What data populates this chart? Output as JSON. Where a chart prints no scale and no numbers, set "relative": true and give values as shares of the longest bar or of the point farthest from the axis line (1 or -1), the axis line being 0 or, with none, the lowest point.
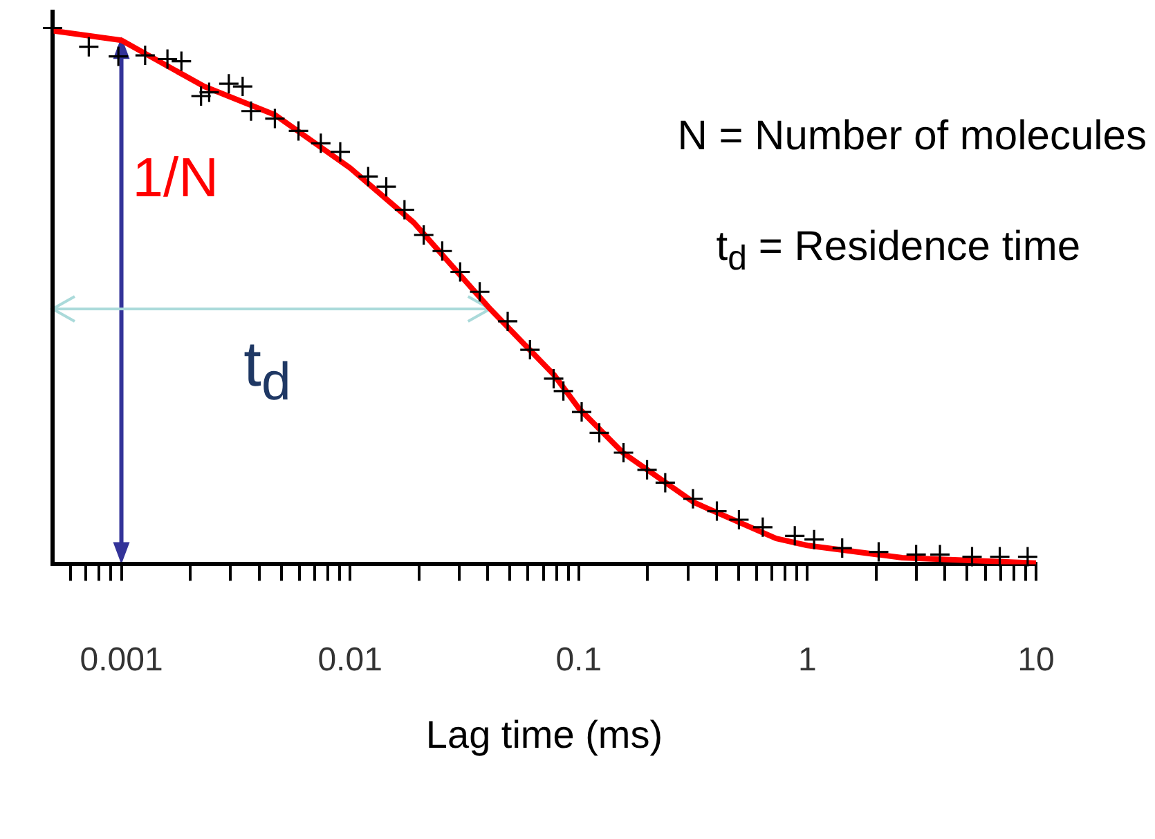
{
  "chart_data": {
    "type": "scatter",
    "xlabel": "Lag time (ms)",
    "relative": true,
    "log": "x",
    "grid": false,
    "legend": false,
    "xlim": [
      0.0005,
      10
    ],
    "xticks": [
      {
        "value": 0.0006,
        "label": null
      },
      {
        "value": 0.0007,
        "label": null
      },
      {
        "value": 0.0008,
        "label": null
      },
      {
        "value": 0.0009,
        "label": null
      },
      0.001,
      {
        "value": 0.002,
        "label": null
      },
      {
        "value": 0.003,
        "label": null
      },
      {
        "value": 0.004,
        "label": null
      },
      {
        "value": 0.005,
        "label": null
      },
      {
        "value": 0.006,
        "label": null
      },
      {
        "value": 0.007,
        "label": null
      },
      {
        "value": 0.008,
        "label": null
      },
      {
        "value": 0.009,
        "label": null
      },
      0.01,
      {
        "value": 0.02,
        "label": null
      },
      {
        "value": 0.03,
        "label": null
      },
      {
        "value": 0.04,
        "label": null
      },
      {
        "value": 0.05,
        "label": null
      },
      {
        "value": 0.06,
        "label": null
      },
      {
        "value": 0.07,
        "label": null
      },
      {
        "value": 0.08,
        "label": null
      },
      {
        "value": 0.09,
        "label": null
      },
      0.1,
      {
        "value": 0.2,
        "label": null
      },
      {
        "value": 0.3,
        "label": null
      },
      {
        "value": 0.4,
        "label": null
      },
      {
        "value": 0.5,
        "label": null
      },
      {
        "value": 0.6,
        "label": null
      },
      {
        "value": 0.7,
        "label": null
      },
      {
        "value": 0.8,
        "label": null
      },
      {
        "value": 0.9,
        "label": null
      },
      1,
      {
        "value": 2,
        "label": null
      },
      {
        "value": 3,
        "label": null
      },
      {
        "value": 4,
        "label": null
      },
      {
        "value": 5,
        "label": null
      },
      {
        "value": 6,
        "label": null
      },
      {
        "value": 7,
        "label": null
      },
      {
        "value": 8,
        "label": null
      },
      {
        "value": 9,
        "label": null
      },
      10
    ],
    "series": [
      {
        "type": "scatter",
        "color": "#000000",
        "marker": "cross",
        "x": [
          0.0005,
          0.00072,
          0.00097,
          0.00127,
          0.00159,
          0.00183,
          0.00223,
          0.00242,
          0.00295,
          0.00339,
          0.00369,
          0.00469,
          0.00595,
          0.00745,
          0.00906,
          0.012,
          0.0144,
          0.0173,
          0.021,
          0.0253,
          0.0303,
          0.0369,
          0.0489,
          0.0612,
          0.0777,
          0.0857,
          0.103,
          0.123,
          0.157,
          0.199,
          0.239,
          0.316,
          0.402,
          0.502,
          0.638,
          0.881,
          1.07,
          1.42,
          2.05,
          2.99,
          3.8,
          5.25,
          6.94,
          9.19
        ],
        "values": [
          1.0,
          0.965,
          0.947,
          0.949,
          0.942,
          0.938,
          0.873,
          0.88,
          0.896,
          0.891,
          0.845,
          0.831,
          0.808,
          0.785,
          0.769,
          0.723,
          0.704,
          0.661,
          0.614,
          0.584,
          0.545,
          0.508,
          0.453,
          0.4,
          0.346,
          0.323,
          0.284,
          0.245,
          0.208,
          0.176,
          0.152,
          0.122,
          0.099,
          0.083,
          0.069,
          0.053,
          0.046,
          0.03,
          0.023,
          0.018,
          0.018,
          0.014,
          0.014,
          0.014
        ]
      },
      {
        "type": "line",
        "color": "#ff0000",
        "marker": "none",
        "line_style": "solid",
        "x": [
          0.0005,
          0.001,
          0.0023,
          0.0047,
          0.01,
          0.019,
          0.041,
          0.078,
          0.1,
          0.156,
          0.32,
          0.73,
          1,
          2.6,
          10
        ],
        "values": [
          0.995,
          0.977,
          0.891,
          0.838,
          0.739,
          0.637,
          0.476,
          0.353,
          0.291,
          0.208,
          0.115,
          0.048,
          0.035,
          0.012,
          0.002
        ]
      }
    ],
    "ref_lines": [
      {
        "axis": "x",
        "value": 0.001,
        "label": "1/N",
        "color": "#333399"
      },
      {
        "axis": "y",
        "value": 0.476,
        "label": "t$_{d}$",
        "color": "#aadada"
      }
    ],
    "annotations": [
      "N = Number of molecules",
      "t$_{d}$ = Residence time"
    ]
  }
}
